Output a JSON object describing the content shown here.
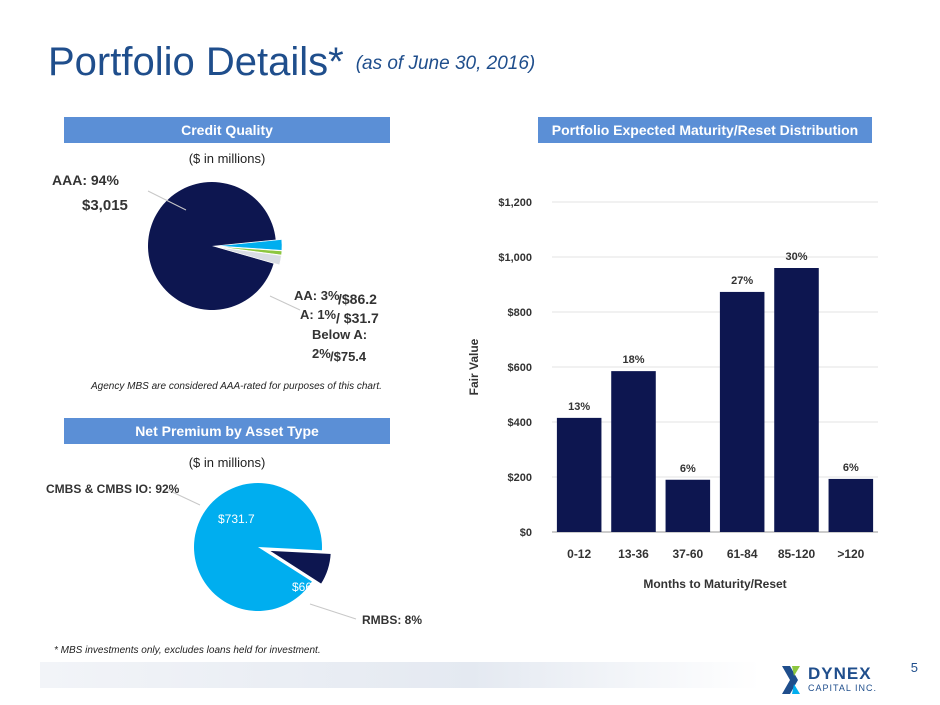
{
  "title": {
    "main": "Portfolio Details*",
    "sub": "(as of June 30, 2016)"
  },
  "credit_quality": {
    "header": "Credit Quality",
    "units": "($ in millions)",
    "labels": {
      "aaa": "AAA: 94%",
      "aaa_value": "$3,015",
      "aa": "AA: 3%",
      "aa_value": "/$86.2",
      "a": "A: 1%",
      "a_value": "/ $31.7",
      "below_a": "Below A:",
      "below_a_pct": "2%",
      "below_a_value": "/$75.4"
    },
    "note": "Agency MBS are considered AAA-rated for purposes of this chart."
  },
  "net_premium": {
    "header": "Net Premium by Asset Type",
    "units": "($ in millions)",
    "labels": {
      "cmbs": "CMBS & CMBS IO: 92%",
      "cmbs_value": "$731.7",
      "rmbs": "RMBS: 8%",
      "rmbs_value": "$66"
    }
  },
  "maturity": {
    "header": "Portfolio Expected Maturity/Reset Distribution"
  },
  "footnote": "* MBS investments only, excludes loans held for investment.",
  "page_number": "5",
  "logo": {
    "name": "DYNEX",
    "sub": "CAPITAL INC."
  },
  "colors": {
    "navy": "#0d1650",
    "light_blue": "#00aeef",
    "green": "#8dc63f",
    "header_blue": "#5b8fd6",
    "title_blue": "#1f4e8c"
  },
  "chart_data": [
    {
      "type": "pie",
      "title": "Credit Quality",
      "categories": [
        "AAA",
        "AA",
        "A",
        "Below A"
      ],
      "values": [
        3015,
        86.2,
        31.7,
        75.4
      ],
      "percent": [
        94,
        3,
        1,
        2
      ],
      "colors": [
        "#0d1650",
        "#00aeef",
        "#8dc63f",
        "#d9dde3"
      ]
    },
    {
      "type": "pie",
      "title": "Net Premium by Asset Type",
      "categories": [
        "CMBS & CMBS IO",
        "RMBS"
      ],
      "values": [
        731.7,
        66
      ],
      "percent": [
        92,
        8
      ],
      "colors": [
        "#00aeef",
        "#0d1650"
      ]
    },
    {
      "type": "bar",
      "title": "Portfolio Expected Maturity/Reset Distribution",
      "categories": [
        "0-12",
        "13-36",
        "37-60",
        "61-84",
        "85-120",
        ">120"
      ],
      "values": [
        415,
        585,
        190,
        873,
        960,
        193
      ],
      "data_labels": [
        "13%",
        "18%",
        "6%",
        "27%",
        "30%",
        "6%"
      ],
      "xlabel": "Months to Maturity/Reset",
      "ylabel": "Fair Value",
      "ylim": [
        0,
        1200
      ],
      "yticks": [
        0,
        200,
        400,
        600,
        800,
        1000,
        1200
      ],
      "ytick_labels": [
        "$0",
        "$200",
        "$400",
        "$600",
        "$800",
        "$1,000",
        "$1,200"
      ],
      "grid": true
    }
  ]
}
